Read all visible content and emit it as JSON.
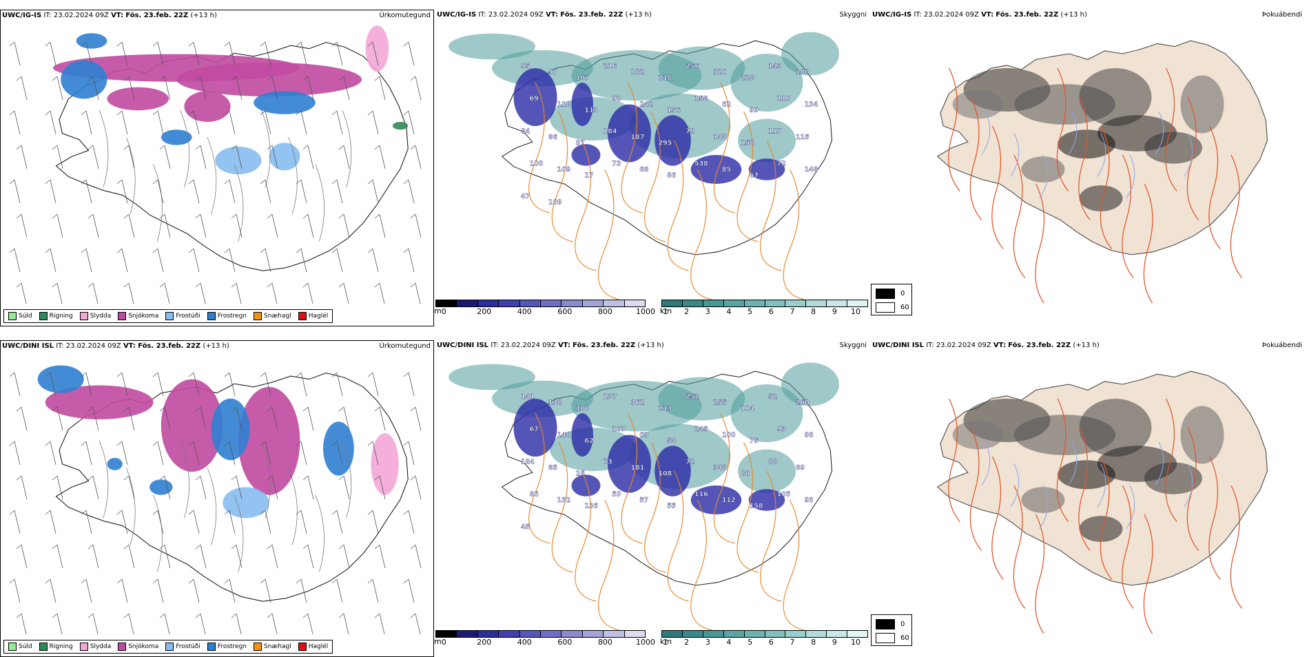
{
  "precip_legend": {
    "items": [
      {
        "label": "Súld",
        "color": "#90ee90"
      },
      {
        "label": "Rigning",
        "color": "#2e8b57"
      },
      {
        "label": "Slydda",
        "color": "#f4a6d7"
      },
      {
        "label": "Snjókoma",
        "color": "#c04aa0"
      },
      {
        "label": "Frostúði",
        "color": "#87bdf0"
      },
      {
        "label": "Frostregn",
        "color": "#2f7fd0"
      },
      {
        "label": "Snæhagl",
        "color": "#f29318"
      },
      {
        "label": "Haglél",
        "color": "#e01010"
      }
    ]
  },
  "rows": [
    {
      "model": "UWC/IG-IS",
      "it_label": "IT:",
      "it_value": "23.02.2024 09Z",
      "vt_label": "VT:",
      "vt_value": "Fös. 23.feb. 22Z",
      "lead": "(+13 h)",
      "titles": {
        "precip": "Úrkomutegund",
        "cloud": "Skyggni",
        "fog": "Þokuábendi"
      },
      "cloud_labels": [
        "95",
        "97",
        "107",
        "216",
        "182",
        "218",
        "256",
        "320",
        "228",
        "143",
        "180",
        "69",
        "118",
        "113",
        "91",
        "242",
        "156",
        "158",
        "62",
        "99",
        "110",
        "134",
        "84",
        "86",
        "97",
        "184",
        "187",
        "295",
        "79",
        "148",
        "158",
        "117",
        "115",
        "100",
        "109",
        "17",
        "73",
        "68",
        "86",
        "538",
        "85",
        "67",
        "72",
        "148",
        "47",
        "109"
      ]
    },
    {
      "model": "UWC/DINI ISL",
      "it_label": "IT:",
      "it_value": "23.02.2024 09Z",
      "vt_label": "VT:",
      "vt_value": "Fös. 23.feb. 22Z",
      "lead": "(+13 h)",
      "titles": {
        "precip": "Úrkomutegund",
        "cloud": "Skyggni",
        "fog": "Þokuábendi"
      },
      "cloud_labels": [
        "141",
        "138",
        "100",
        "137",
        "362",
        "213",
        "252",
        "255",
        "114",
        "52",
        "260",
        "67",
        "148",
        "62",
        "107",
        "63",
        "54",
        "245",
        "100",
        "75",
        "93",
        "98",
        "184",
        "85",
        "26",
        "73",
        "181",
        "108",
        "72",
        "348",
        "80",
        "88",
        "89",
        "86",
        "132",
        "136",
        "53",
        "57",
        "55",
        "116",
        "112",
        "158",
        "105",
        "93",
        "45"
      ]
    }
  ],
  "cloud_colorbars": {
    "height": {
      "unit": "m",
      "ticks": [
        "0",
        "200",
        "400",
        "600",
        "800",
        "1000"
      ],
      "colors": [
        "#000000",
        "#1a1a6e",
        "#2d2d9a",
        "#3f3fb0",
        "#5656b8",
        "#6e6ec2",
        "#8a8acc",
        "#a4a4d8",
        "#c0c0e4",
        "#dcdcf0"
      ]
    },
    "visibility": {
      "unit": "km",
      "ticks": [
        "1",
        "2",
        "3",
        "4",
        "5",
        "6",
        "7",
        "8",
        "9",
        "10"
      ],
      "colors": [
        "#2f7a78",
        "#3b8886",
        "#4a9694",
        "#5ba4a2",
        "#6eb2b0",
        "#82c0be",
        "#98cecc",
        "#b0dcda",
        "#c8e8e6",
        "#e2f4f3"
      ]
    }
  },
  "fog_legend": {
    "items": [
      {
        "label": "0",
        "color": "#000000"
      },
      {
        "label": "60",
        "color": "#ffffff"
      }
    ]
  }
}
